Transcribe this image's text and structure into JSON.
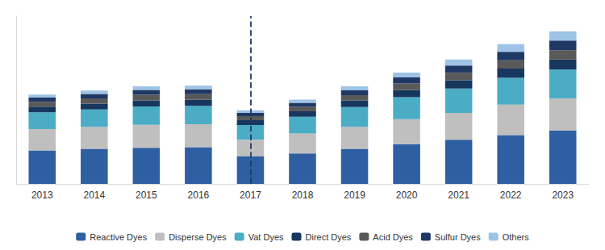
{
  "chart_data": {
    "type": "bar",
    "categories": [
      "2013",
      "2014",
      "2015",
      "2016",
      "2017",
      "2018",
      "2019",
      "2020",
      "2021",
      "2022",
      "2023"
    ],
    "series": [
      {
        "name": "Reactive Dyes",
        "color": "#2E5FA3",
        "values": [
          1.1,
          1.15,
          1.18,
          1.2,
          0.9,
          1.0,
          1.15,
          1.3,
          1.45,
          1.6,
          1.75
        ]
      },
      {
        "name": "Disperse Dyes",
        "color": "#BFBFBF",
        "values": [
          0.7,
          0.72,
          0.76,
          0.76,
          0.55,
          0.65,
          0.72,
          0.82,
          0.88,
          1.0,
          1.05
        ]
      },
      {
        "name": "Vat Dyes",
        "color": "#4BACC6",
        "values": [
          0.55,
          0.57,
          0.6,
          0.6,
          0.48,
          0.55,
          0.65,
          0.72,
          0.8,
          0.88,
          0.95
        ]
      },
      {
        "name": "Direct Dyes",
        "color": "#17375E",
        "values": [
          0.18,
          0.19,
          0.2,
          0.2,
          0.16,
          0.18,
          0.21,
          0.24,
          0.27,
          0.3,
          0.33
        ]
      },
      {
        "name": "Acid Dyes",
        "color": "#595959",
        "values": [
          0.16,
          0.17,
          0.18,
          0.18,
          0.13,
          0.15,
          0.18,
          0.21,
          0.24,
          0.27,
          0.3
        ]
      },
      {
        "name": "Sulfur Dyes",
        "color": "#1F3864",
        "values": [
          0.14,
          0.15,
          0.16,
          0.16,
          0.11,
          0.13,
          0.16,
          0.2,
          0.24,
          0.28,
          0.32
        ]
      },
      {
        "name": "Others",
        "color": "#9DC3E6",
        "values": [
          0.1,
          0.11,
          0.12,
          0.12,
          0.08,
          0.1,
          0.13,
          0.16,
          0.2,
          0.25,
          0.3
        ]
      }
    ],
    "stacked": true,
    "ylim": [
      0,
      5.5
    ],
    "grid": false,
    "tick_labels": "x",
    "legend": "bottom"
  }
}
